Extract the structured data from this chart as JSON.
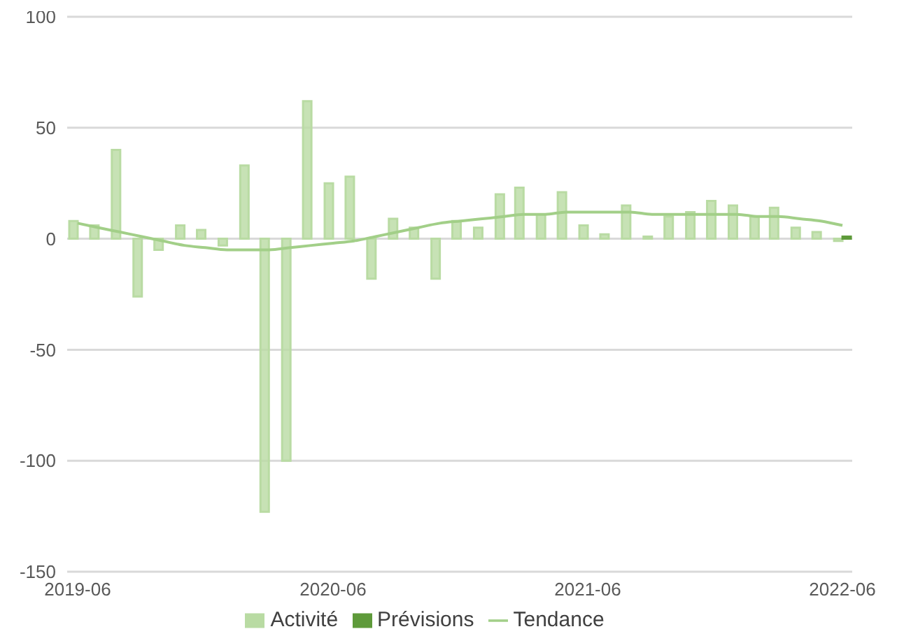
{
  "chart_data": {
    "type": "bar",
    "x": [
      "2019-06",
      "2019-07",
      "2019-08",
      "2019-09",
      "2019-10",
      "2019-11",
      "2019-12",
      "2020-01",
      "2020-02",
      "2020-03",
      "2020-04",
      "2020-05",
      "2020-06",
      "2020-07",
      "2020-08",
      "2020-09",
      "2020-10",
      "2020-11",
      "2020-12",
      "2021-01",
      "2021-02",
      "2021-03",
      "2021-04",
      "2021-05",
      "2021-06",
      "2021-07",
      "2021-08",
      "2021-09",
      "2021-10",
      "2021-11",
      "2021-12",
      "2022-01",
      "2022-02",
      "2022-03",
      "2022-04",
      "2022-05",
      "2022-06"
    ],
    "series": [
      {
        "name": "Activité",
        "color": "#b9dba3",
        "values": [
          8,
          6,
          40,
          -26,
          -5,
          6,
          4,
          -3,
          33,
          -123,
          -100,
          62,
          25,
          28,
          -18,
          9,
          5,
          -18,
          8,
          5,
          20,
          23,
          11,
          21,
          6,
          2,
          15,
          1,
          10,
          12,
          17,
          15,
          10,
          14,
          5,
          3,
          -1
        ]
      },
      {
        "name": "Prévisions",
        "color": "#5e9a3a",
        "values": [
          null,
          null,
          null,
          null,
          null,
          null,
          null,
          null,
          null,
          null,
          null,
          null,
          null,
          null,
          null,
          null,
          null,
          null,
          null,
          null,
          null,
          null,
          null,
          null,
          null,
          null,
          null,
          null,
          null,
          null,
          null,
          null,
          null,
          null,
          null,
          null,
          1
        ]
      },
      {
        "name": "Tendance",
        "type": "line",
        "color": "#a2cf88",
        "values": [
          7,
          5,
          3,
          1,
          -1,
          -3,
          -4,
          -5,
          -5,
          -5,
          -4,
          -3,
          -2,
          -1,
          1,
          3,
          5,
          7,
          8,
          9,
          10,
          11,
          11,
          12,
          12,
          12,
          12,
          11,
          11,
          11,
          11,
          11,
          10,
          10,
          9,
          8,
          6
        ]
      }
    ],
    "xlim": [
      "2019-05-17",
      "2022-06-15"
    ],
    "xticks": [
      "2019-06",
      "2020-06",
      "2021-06",
      "2022-06"
    ],
    "ylim": [
      -150,
      100
    ],
    "yticks": [
      -150,
      -100,
      -50,
      0,
      50,
      100
    ],
    "grid": "y",
    "legend": "bottom",
    "marker": "none"
  }
}
